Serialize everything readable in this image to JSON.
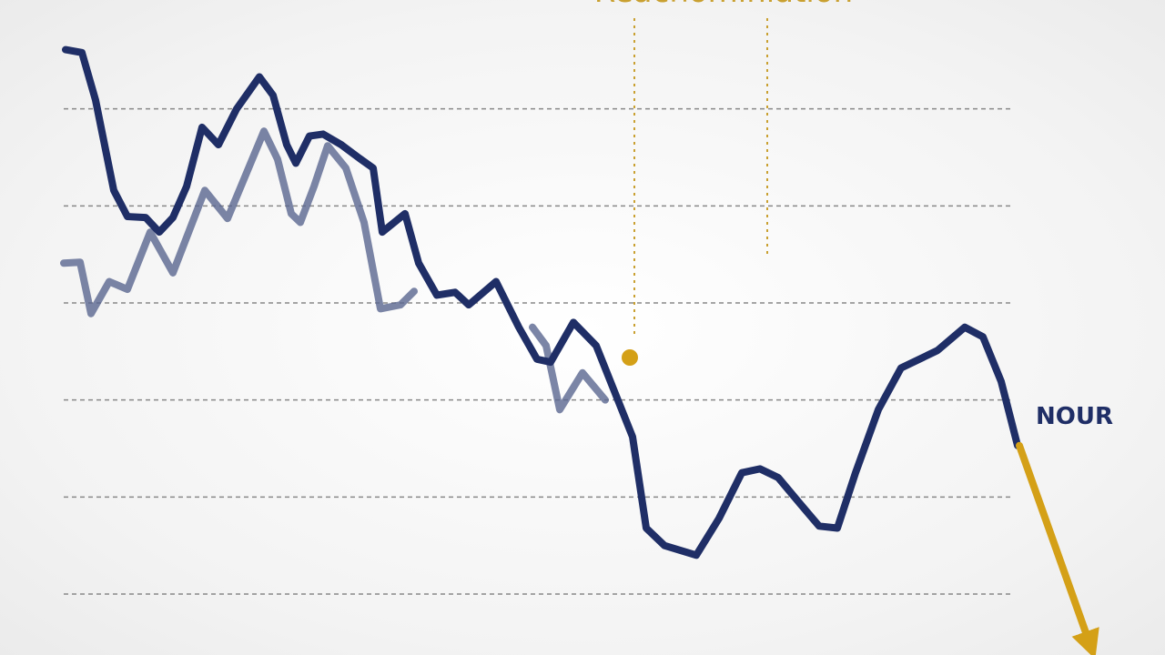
{
  "chart_data": {
    "type": "line",
    "title": "Reachominiation",
    "annotations": [
      "NOUR"
    ],
    "xlim": [
      0,
      1210
    ],
    "ylim": [
      -0.6,
      5.7
    ],
    "yticks": [
      0,
      1,
      2,
      3,
      4,
      5
    ],
    "grid": true,
    "series": [
      {
        "color": "#5a6790",
        "opacity": 0.8,
        "x": [
          0,
          18,
          30,
          50,
          70,
          95,
          120,
          155,
          180,
          220,
          235,
          250,
          260,
          275,
          290,
          310,
          330,
          348,
          370,
          385,
          450,
          515,
          530,
          545,
          570,
          595
        ],
        "values": [
          3.41,
          3.42,
          2.89,
          3.22,
          3.14,
          3.73,
          3.31,
          4.16,
          3.87,
          4.77,
          4.48,
          3.92,
          3.83,
          4.2,
          4.62,
          4.39,
          3.83,
          2.94,
          2.98,
          3.12,
          null,
          2.75,
          2.56,
          1.9,
          2.28,
          2.0
        ]
      },
      {
        "color": "#1f2e66",
        "opacity": 1,
        "x": [
          2,
          20,
          35,
          55,
          70,
          90,
          105,
          120,
          135,
          152,
          170,
          190,
          215,
          230,
          245,
          255,
          270,
          285,
          305,
          325,
          340,
          350,
          375,
          390,
          410,
          430,
          445,
          475,
          500,
          520,
          535,
          560,
          585,
          605,
          625,
          640,
          660,
          695,
          720,
          745,
          765,
          785,
          810,
          830,
          850,
          870,
          895,
          920,
          960,
          990,
          1010,
          1030,
          1048
        ],
        "values": [
          5.61,
          5.58,
          5.09,
          4.16,
          3.89,
          3.88,
          3.73,
          3.88,
          4.2,
          4.81,
          4.63,
          5.0,
          5.33,
          5.14,
          4.63,
          4.44,
          4.72,
          4.74,
          4.63,
          4.49,
          4.39,
          3.73,
          3.92,
          3.41,
          3.08,
          3.11,
          2.98,
          3.22,
          2.75,
          2.42,
          2.39,
          2.8,
          2.56,
          2.09,
          1.62,
          0.68,
          0.5,
          0.4,
          0.78,
          1.25,
          1.29,
          1.2,
          0.92,
          0.7,
          0.68,
          1.25,
          1.9,
          2.33,
          2.51,
          2.75,
          2.65,
          2.19,
          1.53
        ]
      },
      {
        "color": "#d4a017",
        "opacity": 1,
        "arrow": true,
        "x": [
          1050,
          1128
        ],
        "values": [
          1.53,
          -0.53
        ]
      }
    ]
  }
}
